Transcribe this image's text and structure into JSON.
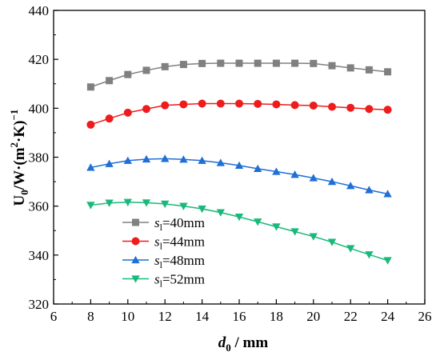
{
  "chart_data": {
    "type": "line",
    "xlabel": {
      "main": "d",
      "sub": "0",
      "rest": " / mm"
    },
    "ylabel": {
      "main": "U",
      "sub": "0",
      "mid": "/W·(m",
      "sup": "2",
      "after": "·K)",
      "sup2": "−1"
    },
    "xlim": [
      6,
      26
    ],
    "ylim": [
      320,
      440
    ],
    "xticks": [
      6,
      8,
      10,
      12,
      14,
      16,
      18,
      20,
      22,
      24,
      26
    ],
    "yticks": [
      320,
      340,
      360,
      380,
      400,
      420,
      440
    ],
    "grid": false,
    "legend_position": "bottom-left",
    "x": [
      8,
      9,
      10,
      11,
      12,
      13,
      14,
      15,
      16,
      17,
      18,
      19,
      20,
      21,
      22,
      23,
      24
    ],
    "series": [
      {
        "legend": {
          "main": "s",
          "sub": "l",
          "rest": "=40mm"
        },
        "color": "#808080",
        "marker": "square",
        "values": [
          408.7,
          411.3,
          413.8,
          415.5,
          417.0,
          417.9,
          418.3,
          418.4,
          418.4,
          418.4,
          418.4,
          418.4,
          418.3,
          417.4,
          416.5,
          415.7,
          414.9
        ]
      },
      {
        "legend": {
          "main": "s",
          "sub": "l",
          "rest": "=44mm"
        },
        "color": "#ee1c1c",
        "marker": "circle",
        "values": [
          393.3,
          395.8,
          398.2,
          399.7,
          401.2,
          401.6,
          401.9,
          401.9,
          401.9,
          401.8,
          401.6,
          401.3,
          401.1,
          400.6,
          400.2,
          399.7,
          399.4
        ]
      },
      {
        "legend": {
          "main": "s",
          "sub": "l",
          "rest": "=48mm"
        },
        "color": "#1f6fd6",
        "marker": "triangle-up",
        "values": [
          375.8,
          377.3,
          378.6,
          379.2,
          379.4,
          379.1,
          378.6,
          377.7,
          376.6,
          375.3,
          374.1,
          372.9,
          371.5,
          370.0,
          368.3,
          366.6,
          365.0
        ]
      },
      {
        "legend": {
          "main": "s",
          "sub": "l",
          "rest": "=52mm"
        },
        "color": "#18b97a",
        "marker": "triangle-down",
        "values": [
          360.4,
          361.3,
          361.6,
          361.4,
          360.9,
          360.0,
          358.9,
          357.4,
          355.6,
          353.6,
          351.6,
          349.6,
          347.6,
          345.3,
          342.7,
          340.2,
          337.8
        ]
      }
    ]
  }
}
